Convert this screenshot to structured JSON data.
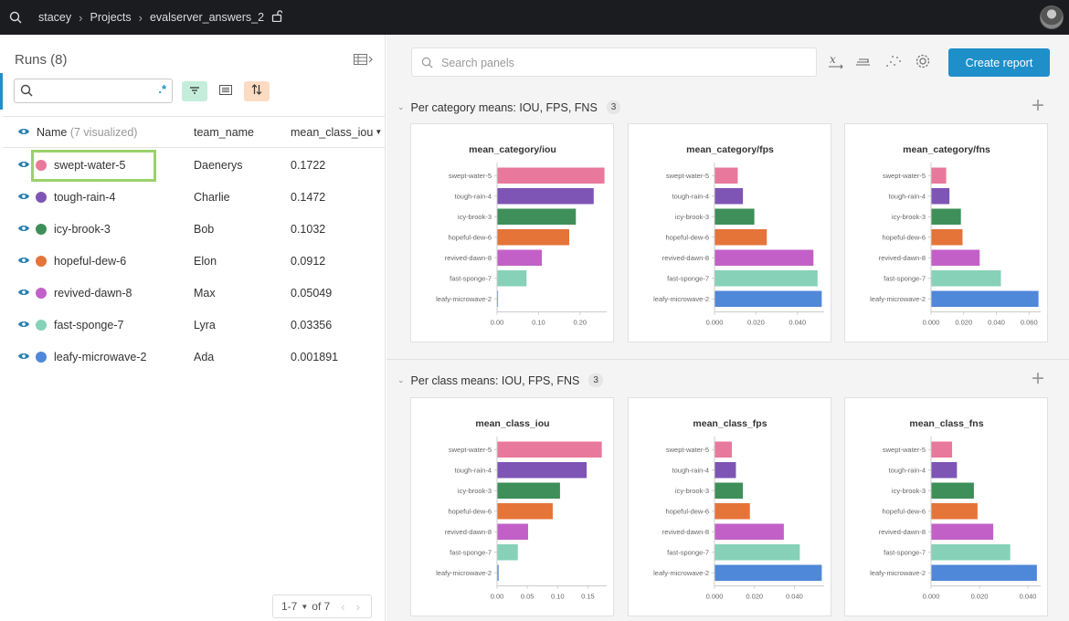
{
  "topbar": {
    "breadcrumb": [
      "stacey",
      "Projects",
      "evalserver_answers_2"
    ]
  },
  "runs_panel": {
    "title": "Runs (8)",
    "search_placeholder": "",
    "regex_label": ".*",
    "columns": {
      "name": "Name",
      "name_note": "(7 visualized)",
      "team": "team_name",
      "iou": "mean_class_iou"
    },
    "rows": [
      {
        "name": "swept-water-5",
        "team": "Daenerys",
        "iou": "0.1722",
        "color": "#e8799c"
      },
      {
        "name": "tough-rain-4",
        "team": "Charlie",
        "iou": "0.1472",
        "color": "#7e55b4"
      },
      {
        "name": "icy-brook-3",
        "team": "Bob",
        "iou": "0.1032",
        "color": "#3e8f59"
      },
      {
        "name": "hopeful-dew-6",
        "team": "Elon",
        "iou": "0.0912",
        "color": "#e57439"
      },
      {
        "name": "revived-dawn-8",
        "team": "Max",
        "iou": "0.05049",
        "color": "#c260c8"
      },
      {
        "name": "fast-sponge-7",
        "team": "Lyra",
        "iou": "0.03356",
        "color": "#86d1b8"
      },
      {
        "name": "leafy-microwave-2",
        "team": "Ada",
        "iou": "0.001891",
        "color": "#4f87d9"
      }
    ],
    "pager": {
      "range": "1-7",
      "of": "of 7"
    }
  },
  "workspace": {
    "search_placeholder": "Search panels",
    "create_report": "Create report",
    "sections": [
      {
        "title": "Per category means: IOU, FPS, FNS",
        "count": "3"
      },
      {
        "title": "Per class means: IOU, FPS, FNS",
        "count": "3"
      }
    ]
  },
  "chart_data": [
    {
      "type": "bar",
      "title": "mean_category/iou",
      "categories": [
        "swept-water-5",
        "tough-rain-4",
        "icy-brook-3",
        "hopeful-dew-6",
        "revived-dawn-8",
        "fast-sponge-7",
        "leafy-microwave-2"
      ],
      "values": [
        0.258,
        0.232,
        0.189,
        0.173,
        0.107,
        0.07,
        0.001
      ],
      "xlim": [
        0,
        0.26
      ],
      "ticks": [
        0,
        0.1,
        0.2
      ],
      "tick_labels": [
        "0.00",
        "0.10",
        "0.20"
      ],
      "colors": [
        "#e8799c",
        "#7e55b4",
        "#3e8f59",
        "#e57439",
        "#c260c8",
        "#86d1b8",
        "#4f87d9"
      ]
    },
    {
      "type": "bar",
      "title": "mean_category/fps",
      "categories": [
        "swept-water-5",
        "tough-rain-4",
        "icy-brook-3",
        "hopeful-dew-6",
        "revived-dawn-8",
        "fast-sponge-7",
        "leafy-microwave-2"
      ],
      "values": [
        0.011,
        0.0135,
        0.019,
        0.025,
        0.0475,
        0.0495,
        0.0515
      ],
      "xlim": [
        0,
        0.052
      ],
      "ticks": [
        0,
        0.02,
        0.04
      ],
      "tick_labels": [
        "0.000",
        "0.020",
        "0.040"
      ],
      "colors": [
        "#e8799c",
        "#7e55b4",
        "#3e8f59",
        "#e57439",
        "#c260c8",
        "#86d1b8",
        "#4f87d9"
      ]
    },
    {
      "type": "bar",
      "title": "mean_category/fns",
      "categories": [
        "swept-water-5",
        "tough-rain-4",
        "icy-brook-3",
        "hopeful-dew-6",
        "revived-dawn-8",
        "fast-sponge-7",
        "leafy-microwave-2"
      ],
      "values": [
        0.009,
        0.011,
        0.018,
        0.019,
        0.0295,
        0.0425,
        0.0655
      ],
      "xlim": [
        0,
        0.066
      ],
      "ticks": [
        0,
        0.02,
        0.04,
        0.06
      ],
      "tick_labels": [
        "0.000",
        "0.020",
        "0.040",
        "0.060"
      ],
      "colors": [
        "#e8799c",
        "#7e55b4",
        "#3e8f59",
        "#e57439",
        "#c260c8",
        "#86d1b8",
        "#4f87d9"
      ]
    },
    {
      "type": "bar",
      "title": "mean_class_iou",
      "categories": [
        "swept-water-5",
        "tough-rain-4",
        "icy-brook-3",
        "hopeful-dew-6",
        "revived-dawn-8",
        "fast-sponge-7",
        "leafy-microwave-2"
      ],
      "values": [
        0.1722,
        0.1472,
        0.1032,
        0.0912,
        0.05049,
        0.03356,
        0.001891
      ],
      "xlim": [
        0,
        0.178
      ],
      "ticks": [
        0,
        0.05,
        0.1,
        0.15
      ],
      "tick_labels": [
        "0.00",
        "0.05",
        "0.10",
        "0.15"
      ],
      "colors": [
        "#e8799c",
        "#7e55b4",
        "#3e8f59",
        "#e57439",
        "#c260c8",
        "#86d1b8",
        "#4f87d9"
      ]
    },
    {
      "type": "bar",
      "title": "mean_class_fps",
      "categories": [
        "swept-water-5",
        "tough-rain-4",
        "icy-brook-3",
        "hopeful-dew-6",
        "revived-dawn-8",
        "fast-sponge-7",
        "leafy-microwave-2"
      ],
      "values": [
        0.0085,
        0.0105,
        0.014,
        0.0175,
        0.0345,
        0.0425,
        0.0535
      ],
      "xlim": [
        0,
        0.054
      ],
      "ticks": [
        0,
        0.02,
        0.04
      ],
      "tick_labels": [
        "0.000",
        "0.020",
        "0.040"
      ],
      "colors": [
        "#e8799c",
        "#7e55b4",
        "#3e8f59",
        "#e57439",
        "#c260c8",
        "#86d1b8",
        "#4f87d9"
      ]
    },
    {
      "type": "bar",
      "title": "mean_class_fns",
      "categories": [
        "swept-water-5",
        "tough-rain-4",
        "icy-brook-3",
        "hopeful-dew-6",
        "revived-dawn-8",
        "fast-sponge-7",
        "leafy-microwave-2"
      ],
      "values": [
        0.0085,
        0.0105,
        0.0175,
        0.019,
        0.0255,
        0.0325,
        0.0435
      ],
      "xlim": [
        0,
        0.0445
      ],
      "ticks": [
        0,
        0.02,
        0.04
      ],
      "tick_labels": [
        "0.000",
        "0.020",
        "0.040"
      ],
      "colors": [
        "#e8799c",
        "#7e55b4",
        "#3e8f59",
        "#e57439",
        "#c260c8",
        "#86d1b8",
        "#4f87d9"
      ]
    }
  ]
}
